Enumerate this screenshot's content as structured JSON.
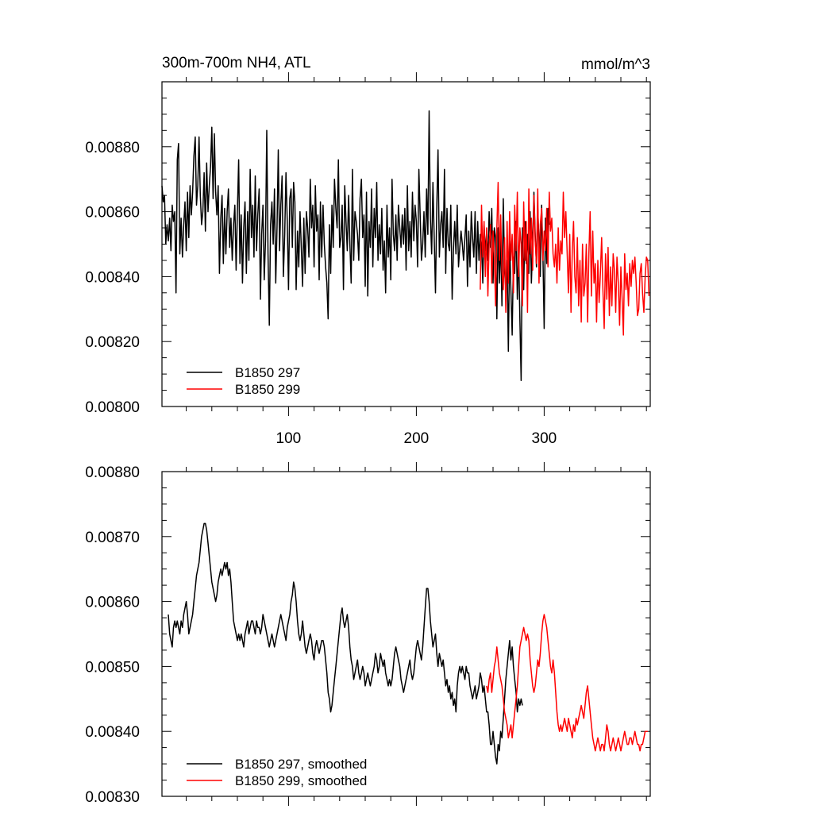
{
  "colors": {
    "series_297": "#000000",
    "series_299": "#ff0000"
  },
  "chart_data": [
    {
      "type": "line",
      "title": "300m-700m NH4, ATL",
      "units": "mmol/m^3",
      "xlim": [
        1,
        383
      ],
      "ylim": [
        0.008,
        0.009
      ],
      "xticks": [
        100,
        200,
        300
      ],
      "xtick_labels": [
        "100",
        "200",
        "300"
      ],
      "yticks": [
        0.008,
        0.0082,
        0.0084,
        0.0086,
        0.0088
      ],
      "ytick_labels": [
        "0.00800",
        "0.00820",
        "0.00840",
        "0.00860",
        "0.00880"
      ],
      "legend_position": "bottom-left",
      "series": [
        {
          "name": "B1850 297",
          "color": "#000000",
          "x_start": 1,
          "values": [
            0.00868,
            0.00863,
            0.00865,
            0.0085,
            0.00856,
            0.00851,
            0.00858,
            0.00848,
            0.00862,
            0.00857,
            0.0086,
            0.00835,
            0.00876,
            0.00881,
            0.00847,
            0.00858,
            0.00846,
            0.00856,
            0.00863,
            0.00848,
            0.00866,
            0.00852,
            0.00868,
            0.00859,
            0.00866,
            0.00877,
            0.00883,
            0.00862,
            0.00868,
            0.00883,
            0.00865,
            0.00856,
            0.0086,
            0.00872,
            0.00854,
            0.00875,
            0.0086,
            0.00868,
            0.00874,
            0.00886,
            0.00864,
            0.00884,
            0.00866,
            0.00859,
            0.00868,
            0.00841,
            0.00858,
            0.00865,
            0.00844,
            0.00861,
            0.00847,
            0.0086,
            0.00867,
            0.00849,
            0.00858,
            0.00845,
            0.00856,
            0.00862,
            0.00842,
            0.0086,
            0.00876,
            0.00844,
            0.00859,
            0.00838,
            0.00855,
            0.00863,
            0.00841,
            0.0086,
            0.00845,
            0.00873,
            0.00852,
            0.00862,
            0.00846,
            0.00871,
            0.00848,
            0.00859,
            0.00867,
            0.00833,
            0.00853,
            0.00862,
            0.00839,
            0.00851,
            0.00885,
            0.00847,
            0.00825,
            0.00856,
            0.00863,
            0.0085,
            0.00867,
            0.00838,
            0.00855,
            0.00879,
            0.00848,
            0.00862,
            0.00871,
            0.0084,
            0.00853,
            0.00872,
            0.00857,
            0.00836,
            0.00864,
            0.00867,
            0.00849,
            0.00869,
            0.00863,
            0.00836,
            0.00854,
            0.00843,
            0.0086,
            0.00849,
            0.00837,
            0.00858,
            0.00841,
            0.0086,
            0.00855,
            0.00846,
            0.0087,
            0.00855,
            0.00862,
            0.00843,
            0.00868,
            0.00854,
            0.00859,
            0.00839,
            0.00863,
            0.00846,
            0.00862,
            0.0085,
            0.00843,
            0.00838,
            0.00827,
            0.00856,
            0.00841,
            0.00862,
            0.00849,
            0.0087,
            0.00861,
            0.00855,
            0.00876,
            0.00849,
            0.00852,
            0.00862,
            0.00836,
            0.00868,
            0.00857,
            0.00848,
            0.00865,
            0.0085,
            0.00838,
            0.00873,
            0.00845,
            0.0086,
            0.00857,
            0.00853,
            0.00845,
            0.00864,
            0.0087,
            0.00852,
            0.00859,
            0.00837,
            0.00866,
            0.00834,
            0.00857,
            0.00849,
            0.00867,
            0.00843,
            0.00861,
            0.00852,
            0.00869,
            0.00845,
            0.00856,
            0.00847,
            0.00861,
            0.00842,
            0.00851,
            0.00835,
            0.00862,
            0.00846,
            0.00855,
            0.00839,
            0.0087,
            0.00853,
            0.00848,
            0.00859,
            0.00845,
            0.00862,
            0.00855,
            0.00849,
            0.00859,
            0.0085,
            0.00861,
            0.00842,
            0.00868,
            0.00848,
            0.00857,
            0.00846,
            0.00866,
            0.00851,
            0.00862,
            0.00857,
            0.00843,
            0.00873,
            0.00859,
            0.00845,
            0.0085,
            0.0086,
            0.00846,
            0.00867,
            0.00853,
            0.00891,
            0.00858,
            0.00847,
            0.00869,
            0.00852,
            0.00835,
            0.00861,
            0.00879,
            0.00846,
            0.00856,
            0.0086,
            0.00849,
            0.00873,
            0.00841,
            0.00861,
            0.0085,
            0.00848,
            0.00862,
            0.00833,
            0.00848,
            0.00857,
            0.00847,
            0.00862,
            0.00843,
            0.00849,
            0.00854,
            0.0085,
            0.00845,
            0.00852,
            0.00859,
            0.00837,
            0.00854,
            0.00843,
            0.0086,
            0.00852,
            0.00846,
            0.0086,
            0.00841,
            0.00857,
            0.00845,
            0.00853,
            0.0085,
            0.00838,
            0.00856,
            0.00848,
            0.00853,
            0.00845,
            0.0086,
            0.00849,
            0.00861,
            0.00838,
            0.00855,
            0.00852,
            0.00827,
            0.00855,
            0.00838,
            0.00852,
            0.00831,
            0.00864,
            0.00842,
            0.00836,
            0.00845,
            0.00817,
            0.00851,
            0.00836,
            0.00822,
            0.00846,
            0.00841,
            0.00857,
            0.00833,
            0.00848,
            0.00827,
            0.00808,
            0.00855,
            0.00836,
            0.00857,
            0.00844,
            0.00853,
            0.00841,
            0.0086,
            0.00838,
            0.0085,
            0.00866,
            0.00853,
            0.00843,
            0.00861,
            0.00851,
            0.0084,
            0.00862,
            0.00847,
            0.00824,
            0.00858,
            0.00844,
            0.00861,
            0.00856
          ]
        },
        {
          "name": "B1850 299",
          "color": "#ff0000",
          "x_start": 250,
          "values": [
            0.00836,
            0.00862,
            0.00846,
            0.00857,
            0.0084,
            0.00855,
            0.00834,
            0.0085,
            0.00856,
            0.00838,
            0.00854,
            0.00846,
            0.00831,
            0.00855,
            0.00869,
            0.00845,
            0.00859,
            0.00842,
            0.00836,
            0.00852,
            0.00829,
            0.00857,
            0.00838,
            0.0086,
            0.00845,
            0.00853,
            0.00835,
            0.00862,
            0.00848,
            0.00866,
            0.0084,
            0.00855,
            0.0085,
            0.00831,
            0.00863,
            0.00845,
            0.00857,
            0.00829,
            0.00867,
            0.00847,
            0.00858,
            0.00842,
            0.00865,
            0.00851,
            0.00844,
            0.00867,
            0.00838,
            0.00856,
            0.00861,
            0.00845,
            0.00854,
            0.00848,
            0.00861,
            0.00843,
            0.00866,
            0.00854,
            0.00858,
            0.00847,
            0.00843,
            0.0085,
            0.00838,
            0.00855,
            0.00842,
            0.00851,
            0.00847,
            0.00866,
            0.00852,
            0.0086,
            0.00847,
            0.00835,
            0.00853,
            0.00829,
            0.00848,
            0.00857,
            0.0084,
            0.00835,
            0.00852,
            0.00831,
            0.00845,
            0.00826,
            0.0085,
            0.00834,
            0.00838,
            0.0085,
            0.00826,
            0.00847,
            0.0086,
            0.00834,
            0.00854,
            0.00838,
            0.00844,
            0.00826,
            0.00845,
            0.00832,
            0.00841,
            0.00852,
            0.00836,
            0.00824,
            0.00847,
            0.00833,
            0.00849,
            0.00828,
            0.00843,
            0.00831,
            0.00847,
            0.00842,
            0.00829,
            0.00846,
            0.00838,
            0.00825,
            0.00843,
            0.00833,
            0.00822,
            0.00847,
            0.00836,
            0.00841,
            0.00831,
            0.00844,
            0.00837,
            0.00845,
            0.00841,
            0.00846,
            0.00838,
            0.00828,
            0.0083,
            0.00841,
            0.00844,
            0.00835,
            0.00829,
            0.0084,
            0.00846,
            0.00845,
            0.00834
          ]
        }
      ]
    },
    {
      "type": "line",
      "title": "",
      "xlim": [
        1,
        383
      ],
      "ylim": [
        0.0083,
        0.0088
      ],
      "xticks": [
        100,
        200,
        300
      ],
      "xtick_labels": [
        "",
        "",
        ""
      ],
      "yticks": [
        0.0083,
        0.0084,
        0.0085,
        0.0086,
        0.0087,
        0.0088
      ],
      "ytick_labels": [
        "0.00830",
        "0.00840",
        "0.00850",
        "0.00860",
        "0.00870",
        "0.00880"
      ],
      "legend_position": "bottom-left",
      "series": [
        {
          "name": "B1850 297, smoothed",
          "color": "#000000",
          "x_start": 6,
          "values": [
            0.00858,
            0.00855,
            0.00854,
            0.00853,
            0.00856,
            0.00857,
            0.00856,
            0.00857,
            0.00856,
            0.00855,
            0.00857,
            0.00856,
            0.00858,
            0.00859,
            0.0086,
            0.00858,
            0.00855,
            0.00856,
            0.00857,
            0.00858,
            0.0086,
            0.00862,
            0.00864,
            0.00865,
            0.00866,
            0.00868,
            0.0087,
            0.00871,
            0.00872,
            0.00872,
            0.00871,
            0.00869,
            0.00867,
            0.00865,
            0.00863,
            0.00862,
            0.00861,
            0.0086,
            0.00861,
            0.00863,
            0.00864,
            0.00865,
            0.00864,
            0.00865,
            0.00866,
            0.00865,
            0.00866,
            0.00864,
            0.00865,
            0.00863,
            0.0086,
            0.00857,
            0.00856,
            0.00855,
            0.00854,
            0.00855,
            0.00854,
            0.00855,
            0.00854,
            0.00853,
            0.00855,
            0.00856,
            0.00857,
            0.00855,
            0.00856,
            0.00857,
            0.00857,
            0.00856,
            0.00855,
            0.00857,
            0.00856,
            0.00856,
            0.00855,
            0.00856,
            0.00858,
            0.00857,
            0.00856,
            0.00855,
            0.00854,
            0.00853,
            0.00854,
            0.00855,
            0.00854,
            0.00853,
            0.00854,
            0.00855,
            0.00856,
            0.00857,
            0.00858,
            0.00857,
            0.00856,
            0.00855,
            0.00854,
            0.00856,
            0.00857,
            0.00858,
            0.0086,
            0.00861,
            0.00863,
            0.00862,
            0.0086,
            0.00857,
            0.00855,
            0.00854,
            0.00855,
            0.00857,
            0.00855,
            0.00853,
            0.00852,
            0.00853,
            0.00854,
            0.00855,
            0.00854,
            0.00852,
            0.00851,
            0.00853,
            0.00854,
            0.00853,
            0.00852,
            0.00853,
            0.00854,
            0.00854,
            0.00853,
            0.00851,
            0.00849,
            0.00846,
            0.00845,
            0.00843,
            0.00844,
            0.00846,
            0.00848,
            0.0085,
            0.00852,
            0.00854,
            0.00856,
            0.00858,
            0.00859,
            0.00857,
            0.00856,
            0.00857,
            0.00858,
            0.00856,
            0.00853,
            0.00851,
            0.0085,
            0.00848,
            0.00849,
            0.0085,
            0.00851,
            0.00849,
            0.00848,
            0.00849,
            0.0085,
            0.00849,
            0.00847,
            0.00848,
            0.00849,
            0.00848,
            0.00847,
            0.00848,
            0.00849,
            0.0085,
            0.00852,
            0.00851,
            0.00849,
            0.0085,
            0.00852,
            0.00851,
            0.0085,
            0.00851,
            0.00849,
            0.00848,
            0.00847,
            0.00848,
            0.00847,
            0.00848,
            0.0085,
            0.00852,
            0.00853,
            0.00852,
            0.00851,
            0.0085,
            0.00848,
            0.00847,
            0.00846,
            0.00847,
            0.00848,
            0.00849,
            0.0085,
            0.00851,
            0.00849,
            0.00848,
            0.00849,
            0.00851,
            0.00853,
            0.00854,
            0.00853,
            0.00852,
            0.00851,
            0.00853,
            0.00856,
            0.00859,
            0.00862,
            0.00862,
            0.0086,
            0.00857,
            0.00855,
            0.00853,
            0.00854,
            0.00855,
            0.00852,
            0.0085,
            0.00852,
            0.00851,
            0.0085,
            0.00851,
            0.00849,
            0.00847,
            0.00848,
            0.00846,
            0.00847,
            0.00845,
            0.00846,
            0.00844,
            0.00845,
            0.00843,
            0.00847,
            0.00849,
            0.0085,
            0.00849,
            0.0085,
            0.00849,
            0.00848,
            0.0085,
            0.00849,
            0.00849,
            0.00847,
            0.00846,
            0.00845,
            0.00846,
            0.00847,
            0.00845,
            0.00846,
            0.00847,
            0.00849,
            0.00848,
            0.00846,
            0.00847,
            0.00845,
            0.00843,
            0.00843,
            0.00841,
            0.00838,
            0.00838,
            0.0084,
            0.00838,
            0.00836,
            0.00835,
            0.00838,
            0.00837,
            0.0084,
            0.00839,
            0.00842,
            0.00845,
            0.00848,
            0.0085,
            0.00852,
            0.00854,
            0.00851,
            0.00853,
            0.0085,
            0.00848,
            0.00846,
            0.00843,
            0.00845,
            0.00844,
            0.00845,
            0.00844
          ]
        },
        {
          "name": "B1850 299, smoothed",
          "color": "#ff0000",
          "x_start": 255,
          "values": [
            0.00847,
            0.00846,
            0.00848,
            0.00849,
            0.00846,
            0.00848,
            0.0085,
            0.00851,
            0.00853,
            0.00851,
            0.00849,
            0.00848,
            0.00847,
            0.00845,
            0.00843,
            0.00842,
            0.00841,
            0.00839,
            0.0084,
            0.00841,
            0.00839,
            0.00841,
            0.00843,
            0.00845,
            0.00847,
            0.0085,
            0.00853,
            0.00854,
            0.00855,
            0.00856,
            0.00855,
            0.00854,
            0.00855,
            0.00854,
            0.00851,
            0.00849,
            0.00847,
            0.00846,
            0.00847,
            0.00849,
            0.00851,
            0.0085,
            0.00852,
            0.00855,
            0.00857,
            0.00858,
            0.00857,
            0.00856,
            0.00854,
            0.00852,
            0.0085,
            0.00849,
            0.00851,
            0.00849,
            0.00846,
            0.00843,
            0.00841,
            0.0084,
            0.00841,
            0.0084,
            0.00841,
            0.00842,
            0.00841,
            0.0084,
            0.00842,
            0.00841,
            0.0084,
            0.00839,
            0.00841,
            0.0084,
            0.00842,
            0.00841,
            0.00842,
            0.00843,
            0.00844,
            0.00843,
            0.00842,
            0.00844,
            0.00846,
            0.00847,
            0.00845,
            0.00843,
            0.00841,
            0.00839,
            0.00838,
            0.00837,
            0.00838,
            0.00839,
            0.00838,
            0.00837,
            0.00838,
            0.00838,
            0.00837,
            0.00839,
            0.00841,
            0.0084,
            0.00838,
            0.00837,
            0.00838,
            0.00839,
            0.00838,
            0.00837,
            0.00838,
            0.00839,
            0.00838,
            0.00837,
            0.00838,
            0.00839,
            0.0084,
            0.00839,
            0.00838,
            0.00838,
            0.00839,
            0.00839,
            0.00838,
            0.00839,
            0.0084,
            0.00839,
            0.00838,
            0.00838,
            0.00837,
            0.00838,
            0.00838,
            0.00839,
            0.0084,
            0.0084,
            0.0084
          ]
        }
      ]
    }
  ]
}
